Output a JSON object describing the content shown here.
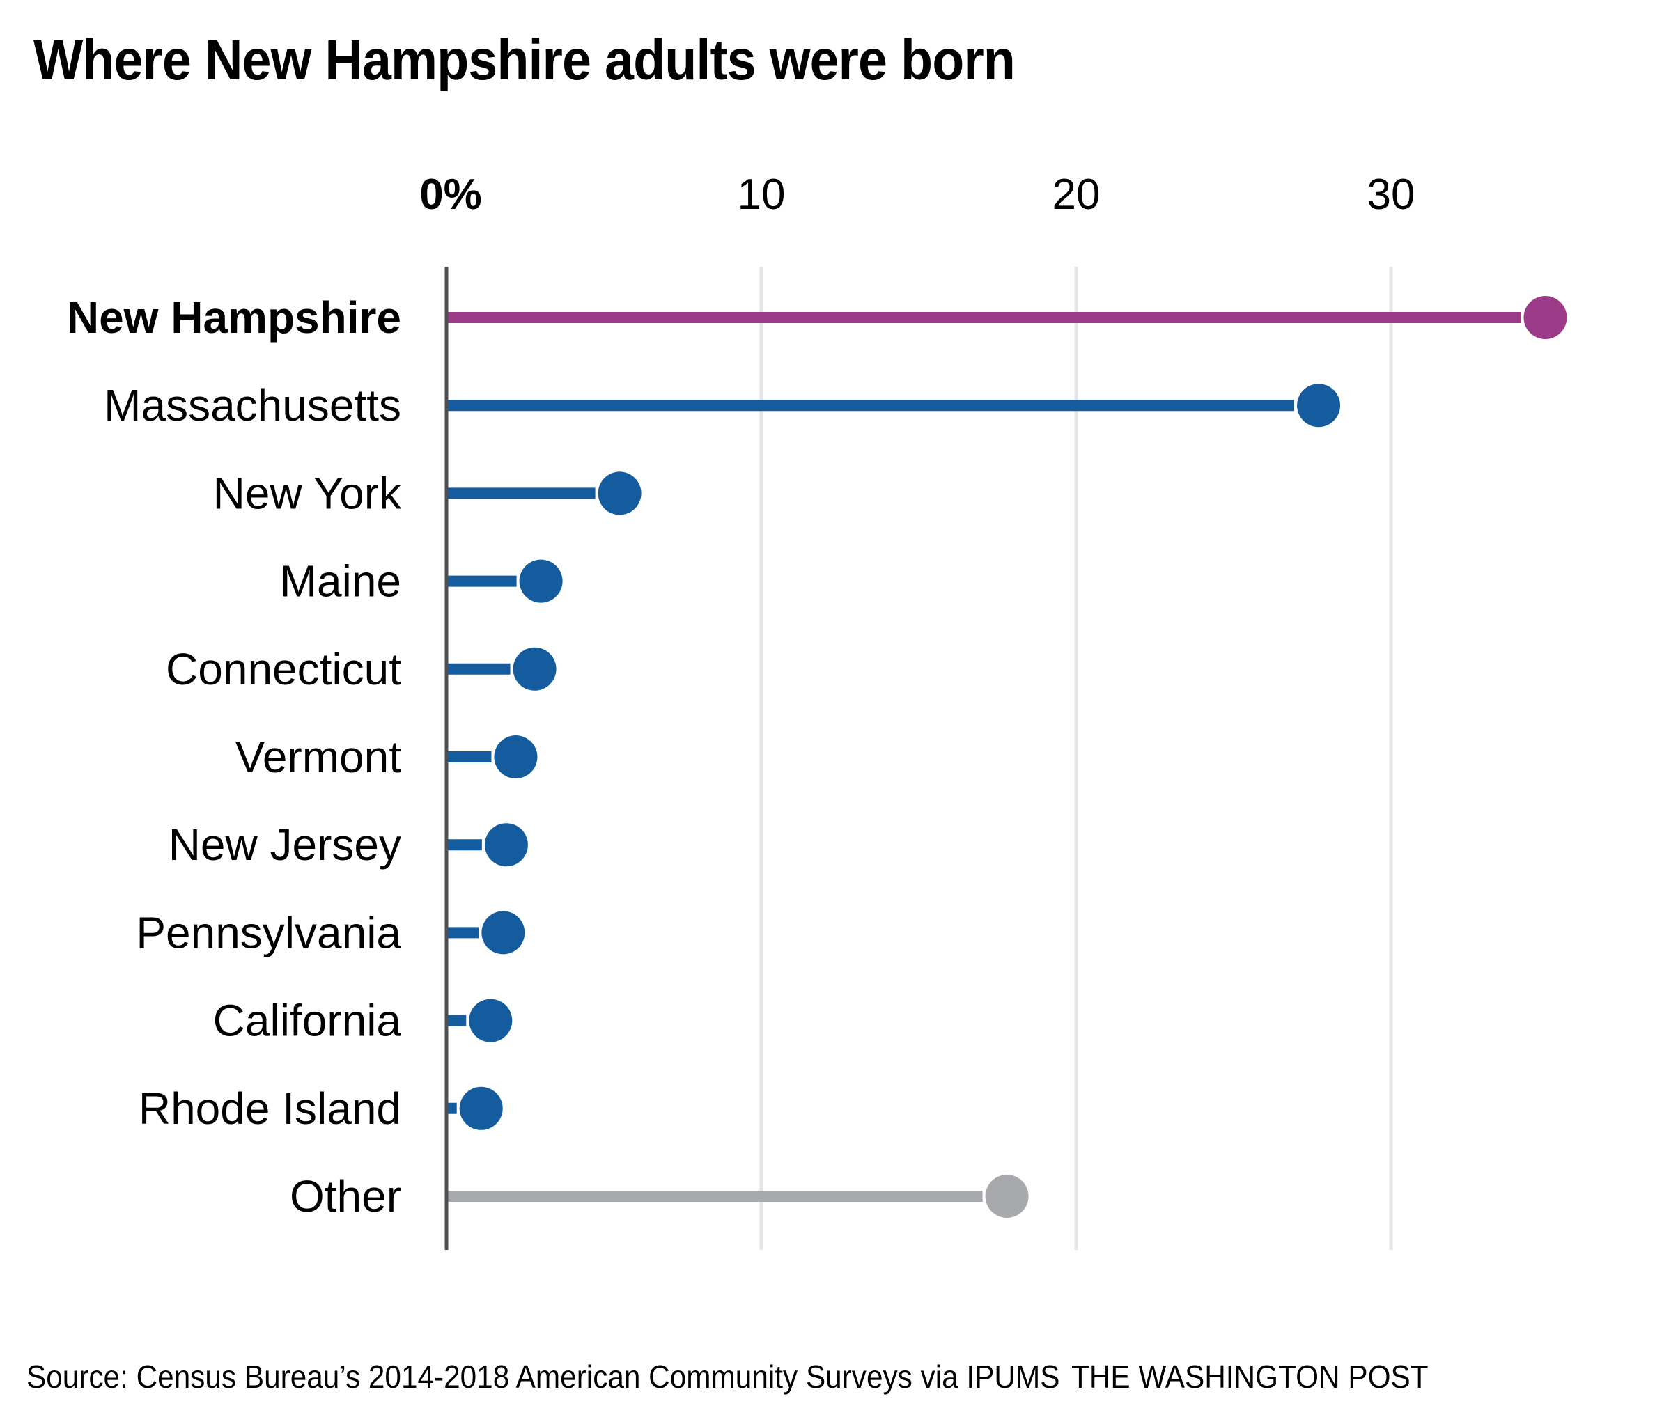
{
  "chart_data": {
    "type": "lollipop",
    "title": "Where New Hampshire adults were born",
    "xlabel": "",
    "ylabel": "",
    "x_unit": "%",
    "xlim": [
      0,
      35
    ],
    "x_ticks": [
      0,
      10,
      20,
      30
    ],
    "x_tick_labels": [
      "0%",
      "10",
      "20",
      "30"
    ],
    "grid": true,
    "categories": [
      "New Hampshire",
      "Massachusetts",
      "New York",
      "Maine",
      "Connecticut",
      "Vermont",
      "New Jersey",
      "Pennsylvania",
      "California",
      "Rhode Island",
      "Other"
    ],
    "values": [
      34.9,
      27.7,
      5.5,
      3.0,
      2.8,
      2.2,
      1.9,
      1.8,
      1.4,
      1.1,
      17.8
    ],
    "highlight": "New Hampshire",
    "groups": [
      "highlight",
      "state",
      "state",
      "state",
      "state",
      "state",
      "state",
      "state",
      "state",
      "state",
      "other"
    ],
    "colors": {
      "highlight": "#9b3a87",
      "state": "#155c9e",
      "other": "#a8a9ad",
      "axis": "#4d4f53",
      "grid": "#e6e6e8"
    }
  },
  "footer": {
    "source": "Source: Census Bureau’s 2014-2018 American Community Surveys via IPUMS",
    "credit": "THE WASHINGTON POST"
  }
}
